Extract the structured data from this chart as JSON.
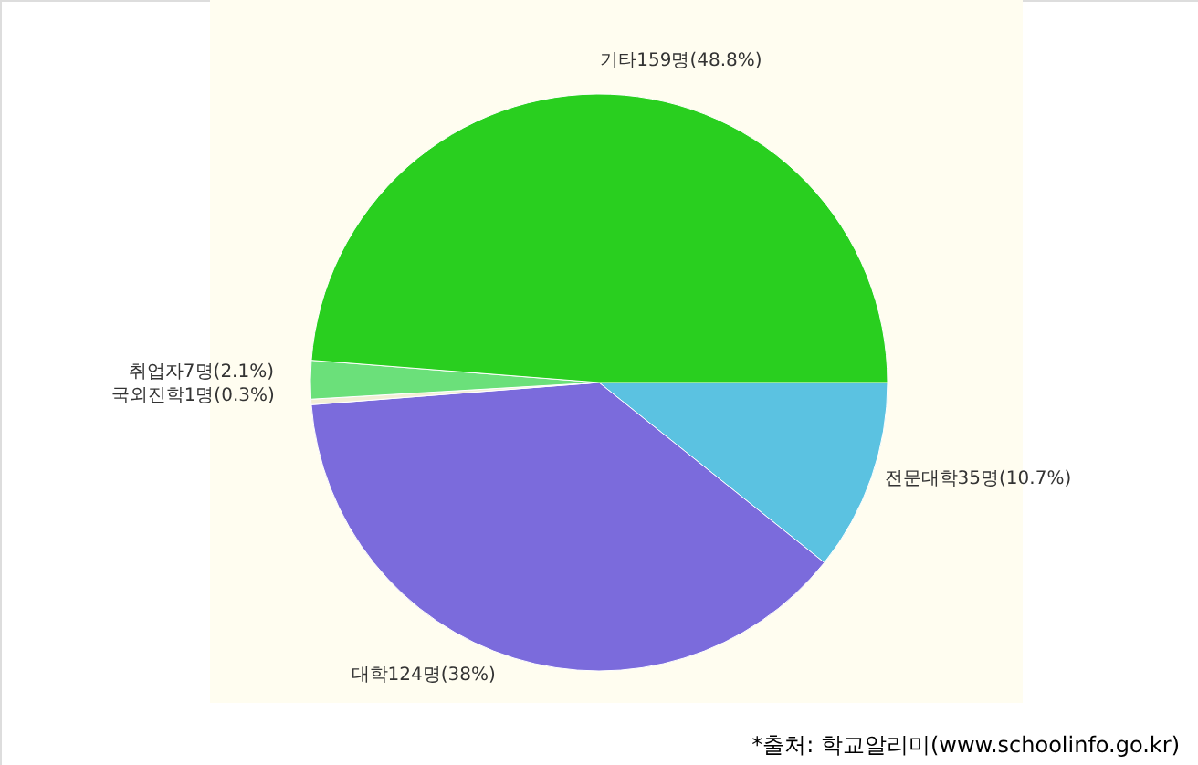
{
  "chart_data": {
    "type": "pie",
    "categories": [
      "전문대학",
      "대학",
      "국외진학",
      "취업자",
      "기타"
    ],
    "values": [
      35,
      124,
      1,
      7,
      159
    ],
    "value_labels": [
      "35명(10.7%)",
      "124명(38%)",
      "1명(0.3%)",
      "7명(2.1%)",
      "159명(48.8%)"
    ],
    "colors": [
      "#5bc2e1",
      "#7b6bdc",
      "#f3efd6",
      "#6be07a",
      "#29cf1f"
    ],
    "annotations": [
      "*출처:  학교알리미(www.schoolinfo.go.kr)"
    ]
  }
}
